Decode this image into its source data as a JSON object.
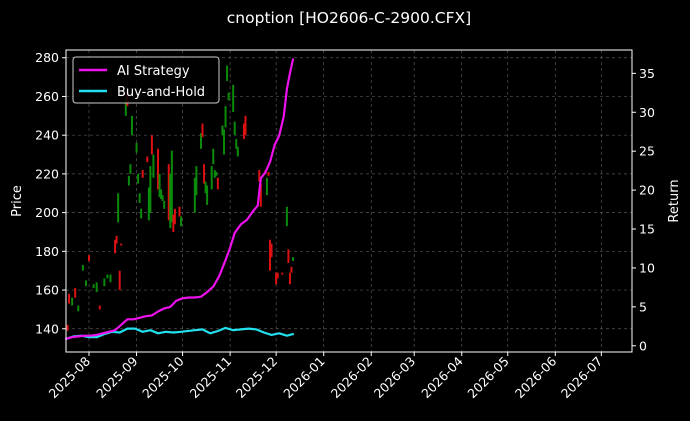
{
  "chart_data": {
    "type": "line",
    "title": "cnoption [HO2606-C-2900.CFX]",
    "ylabel": "Price",
    "y2label": "Return",
    "x_ticks": [
      "2025-08",
      "2025-09",
      "2025-10",
      "2025-11",
      "2025-12",
      "2026-01",
      "2026-02",
      "2026-03",
      "2026-04",
      "2026-05",
      "2026-06",
      "2026-07"
    ],
    "xlim": [
      "2025-07-17",
      "2026-07-21"
    ],
    "ylim": [
      128,
      284
    ],
    "y_ticks": [
      140,
      160,
      180,
      200,
      220,
      240,
      260,
      280
    ],
    "y2lim": [
      -0.8,
      38
    ],
    "y2_ticks": [
      0,
      5,
      10,
      15,
      20,
      25,
      30,
      35
    ],
    "grid": true,
    "legend": {
      "placement": "top-left",
      "entries": [
        "AI Strategy",
        "Buy-and-Hold"
      ]
    },
    "colors": {
      "ai": "#ee11ee",
      "bh": "#22e0ee",
      "up": "#0a8c0a",
      "down": "#dd1111",
      "grid": "#555555"
    },
    "candles": [
      {
        "d": "2025-07-18",
        "o": 142,
        "c": 139
      },
      {
        "d": "2025-07-19",
        "o": 158,
        "c": 153
      },
      {
        "d": "2025-07-21",
        "o": 152,
        "c": 156
      },
      {
        "d": "2025-07-23",
        "o": 161,
        "c": 156
      },
      {
        "d": "2025-07-25",
        "o": 149,
        "c": 152
      },
      {
        "d": "2025-07-28",
        "o": 170,
        "c": 173
      },
      {
        "d": "2025-07-30",
        "o": 162,
        "c": 165
      },
      {
        "d": "2025-08-01",
        "o": 178,
        "c": 175
      },
      {
        "d": "2025-08-04",
        "o": 161,
        "c": 163
      },
      {
        "d": "2025-08-06",
        "o": 159,
        "c": 164
      },
      {
        "d": "2025-08-08",
        "o": 152,
        "c": 150
      },
      {
        "d": "2025-08-11",
        "o": 162,
        "c": 166
      },
      {
        "d": "2025-08-13",
        "o": 166,
        "c": 168
      },
      {
        "d": "2025-08-15",
        "o": 164,
        "c": 168
      },
      {
        "d": "2025-08-18",
        "o": 186,
        "c": 179
      },
      {
        "d": "2025-08-19",
        "o": 188,
        "c": 184
      },
      {
        "d": "2025-08-20",
        "o": 195,
        "c": 210
      },
      {
        "d": "2025-08-21",
        "o": 170,
        "c": 160
      },
      {
        "d": "2025-08-22",
        "o": 184,
        "c": 183
      },
      {
        "d": "2025-08-25",
        "o": 250,
        "c": 260
      },
      {
        "d": "2025-08-26",
        "o": 263,
        "c": 255
      },
      {
        "d": "2025-08-27",
        "o": 214,
        "c": 219
      },
      {
        "d": "2025-08-28",
        "o": 220,
        "c": 225
      },
      {
        "d": "2025-08-29",
        "o": 240,
        "c": 250
      },
      {
        "d": "2025-09-01",
        "o": 231,
        "c": 236
      },
      {
        "d": "2025-09-02",
        "o": 215,
        "c": 220
      },
      {
        "d": "2025-09-03",
        "o": 205,
        "c": 210
      },
      {
        "d": "2025-09-04",
        "o": 197,
        "c": 202
      },
      {
        "d": "2025-09-05",
        "o": 222,
        "c": 218
      },
      {
        "d": "2025-09-08",
        "o": 229,
        "c": 226
      },
      {
        "d": "2025-09-09",
        "o": 196,
        "c": 213
      },
      {
        "d": "2025-09-10",
        "o": 200,
        "c": 224
      },
      {
        "d": "2025-09-11",
        "o": 240,
        "c": 230
      },
      {
        "d": "2025-09-12",
        "o": 218,
        "c": 230
      },
      {
        "d": "2025-09-15",
        "o": 233,
        "c": 212
      },
      {
        "d": "2025-09-16",
        "o": 208,
        "c": 220
      },
      {
        "d": "2025-09-17",
        "o": 207,
        "c": 212
      },
      {
        "d": "2025-09-18",
        "o": 206,
        "c": 209
      },
      {
        "d": "2025-09-19",
        "o": 202,
        "c": 206
      },
      {
        "d": "2025-09-22",
        "o": 225,
        "c": 196
      },
      {
        "d": "2025-09-23",
        "o": 192,
        "c": 220
      },
      {
        "d": "2025-09-24",
        "o": 195,
        "c": 232
      },
      {
        "d": "2025-09-25",
        "o": 199,
        "c": 190
      },
      {
        "d": "2025-09-26",
        "o": 202,
        "c": 194
      },
      {
        "d": "2025-09-29",
        "o": 203,
        "c": 198
      },
      {
        "d": "2025-09-30",
        "o": 193,
        "c": 198
      },
      {
        "d": "2025-10-09",
        "o": 200,
        "c": 218
      },
      {
        "d": "2025-10-10",
        "o": 209,
        "c": 224
      },
      {
        "d": "2025-10-13",
        "o": 233,
        "c": 241
      },
      {
        "d": "2025-10-14",
        "o": 246,
        "c": 239
      },
      {
        "d": "2025-10-15",
        "o": 225,
        "c": 215
      },
      {
        "d": "2025-10-16",
        "o": 210,
        "c": 216
      },
      {
        "d": "2025-10-17",
        "o": 204,
        "c": 214
      },
      {
        "d": "2025-10-20",
        "o": 212,
        "c": 224
      },
      {
        "d": "2025-10-21",
        "o": 225,
        "c": 233
      },
      {
        "d": "2025-10-22",
        "o": 218,
        "c": 222
      },
      {
        "d": "2025-10-23",
        "o": 219,
        "c": 221
      },
      {
        "d": "2025-10-24",
        "o": 218,
        "c": 212
      },
      {
        "d": "2025-10-27",
        "o": 240,
        "c": 245
      },
      {
        "d": "2025-10-28",
        "o": 230,
        "c": 243
      },
      {
        "d": "2025-10-29",
        "o": 244,
        "c": 255
      },
      {
        "d": "2025-10-30",
        "o": 268,
        "c": 276
      },
      {
        "d": "2025-10-31",
        "o": 258,
        "c": 262
      },
      {
        "d": "2025-11-03",
        "o": 252,
        "c": 266
      },
      {
        "d": "2025-11-04",
        "o": 240,
        "c": 247
      },
      {
        "d": "2025-11-05",
        "o": 233,
        "c": 238
      },
      {
        "d": "2025-11-06",
        "o": 229,
        "c": 234
      },
      {
        "d": "2025-11-10",
        "o": 246,
        "c": 238
      },
      {
        "d": "2025-11-11",
        "o": 250,
        "c": 240
      },
      {
        "d": "2025-11-20",
        "o": 222,
        "c": 216
      },
      {
        "d": "2025-11-21",
        "o": 215,
        "c": 203
      },
      {
        "d": "2025-11-24",
        "o": 222,
        "c": 220
      },
      {
        "d": "2025-11-25",
        "o": 209,
        "c": 218
      },
      {
        "d": "2025-11-26",
        "o": 221,
        "c": 219
      },
      {
        "d": "2025-11-27",
        "o": 186,
        "c": 170
      },
      {
        "d": "2025-11-28",
        "o": 184,
        "c": 177
      },
      {
        "d": "2025-12-01",
        "o": 169,
        "c": 163
      },
      {
        "d": "2025-12-02",
        "o": 169,
        "c": 166
      },
      {
        "d": "2025-12-05",
        "o": 169,
        "c": 168
      },
      {
        "d": "2025-12-08",
        "o": 193,
        "c": 203
      },
      {
        "d": "2025-12-09",
        "o": 181,
        "c": 174
      },
      {
        "d": "2025-12-10",
        "o": 169,
        "c": 163
      },
      {
        "d": "2025-12-11",
        "o": 172,
        "c": 169
      },
      {
        "d": "2025-12-12",
        "o": 175,
        "c": 177
      }
    ],
    "series": [
      {
        "name": "AI Strategy",
        "points": [
          [
            "2025-07-17",
            0.9
          ],
          [
            "2025-07-21",
            1.1
          ],
          [
            "2025-07-25",
            1.2
          ],
          [
            "2025-07-29",
            1.3
          ],
          [
            "2025-08-02",
            1.3
          ],
          [
            "2025-08-06",
            1.4
          ],
          [
            "2025-08-10",
            1.6
          ],
          [
            "2025-08-14",
            1.8
          ],
          [
            "2025-08-18",
            2.0
          ],
          [
            "2025-08-22",
            2.7
          ],
          [
            "2025-08-26",
            3.4
          ],
          [
            "2025-08-30",
            3.4
          ],
          [
            "2025-09-03",
            3.6
          ],
          [
            "2025-09-07",
            3.8
          ],
          [
            "2025-09-11",
            3.9
          ],
          [
            "2025-09-15",
            4.4
          ],
          [
            "2025-09-19",
            4.8
          ],
          [
            "2025-09-23",
            5.0
          ],
          [
            "2025-09-27",
            5.8
          ],
          [
            "2025-10-01",
            6.1
          ],
          [
            "2025-10-05",
            6.2
          ],
          [
            "2025-10-09",
            6.2
          ],
          [
            "2025-10-13",
            6.3
          ],
          [
            "2025-10-17",
            6.9
          ],
          [
            "2025-10-21",
            7.6
          ],
          [
            "2025-10-25",
            9.0
          ],
          [
            "2025-10-29",
            11.0
          ],
          [
            "2025-11-01",
            12.6
          ],
          [
            "2025-11-04",
            14.5
          ],
          [
            "2025-11-08",
            15.6
          ],
          [
            "2025-11-12",
            16.2
          ],
          [
            "2025-11-16",
            17.3
          ],
          [
            "2025-11-19",
            18.0
          ],
          [
            "2025-11-21",
            21.5
          ],
          [
            "2025-11-24",
            22.3
          ],
          [
            "2025-11-27",
            23.6
          ],
          [
            "2025-11-30",
            25.8
          ],
          [
            "2025-12-03",
            27.0
          ],
          [
            "2025-12-06",
            29.5
          ],
          [
            "2025-12-08",
            33.0
          ],
          [
            "2025-12-10",
            35.0
          ],
          [
            "2025-12-12",
            36.8
          ]
        ]
      },
      {
        "name": "Buy-and-Hold",
        "points": [
          [
            "2025-07-17",
            0.9
          ],
          [
            "2025-07-22",
            1.2
          ],
          [
            "2025-07-27",
            1.3
          ],
          [
            "2025-08-01",
            1.1
          ],
          [
            "2025-08-06",
            1.1
          ],
          [
            "2025-08-11",
            1.5
          ],
          [
            "2025-08-16",
            1.8
          ],
          [
            "2025-08-21",
            1.7
          ],
          [
            "2025-08-26",
            2.2
          ],
          [
            "2025-08-31",
            2.2
          ],
          [
            "2025-09-05",
            1.8
          ],
          [
            "2025-09-10",
            2.0
          ],
          [
            "2025-09-15",
            1.6
          ],
          [
            "2025-09-20",
            1.8
          ],
          [
            "2025-09-25",
            1.7
          ],
          [
            "2025-09-30",
            1.8
          ],
          [
            "2025-10-09",
            2.0
          ],
          [
            "2025-10-14",
            2.1
          ],
          [
            "2025-10-19",
            1.6
          ],
          [
            "2025-10-24",
            1.9
          ],
          [
            "2025-10-29",
            2.3
          ],
          [
            "2025-11-03",
            2.0
          ],
          [
            "2025-11-08",
            2.1
          ],
          [
            "2025-11-13",
            2.2
          ],
          [
            "2025-11-18",
            2.1
          ],
          [
            "2025-11-23",
            1.7
          ],
          [
            "2025-11-28",
            1.4
          ],
          [
            "2025-12-03",
            1.6
          ],
          [
            "2025-12-08",
            1.3
          ],
          [
            "2025-12-12",
            1.5
          ]
        ]
      }
    ]
  }
}
